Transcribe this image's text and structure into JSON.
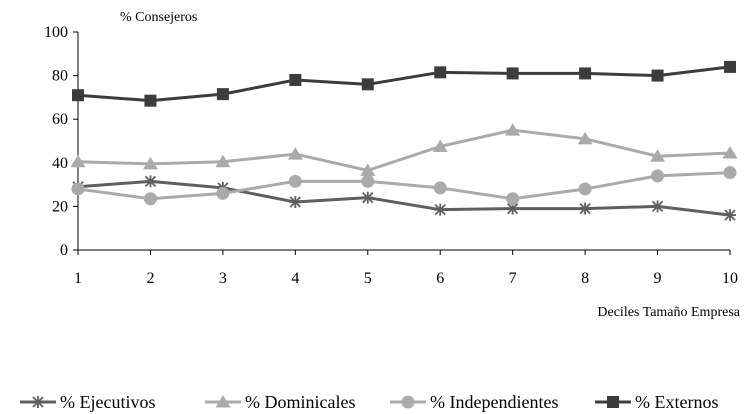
{
  "chart_data": {
    "type": "line",
    "title": "",
    "ylabel": "% Consejeros",
    "xlabel": "Deciles Tamaño Empresa",
    "x": [
      1,
      2,
      3,
      4,
      5,
      6,
      7,
      8,
      9,
      10
    ],
    "ylim": [
      0,
      100
    ],
    "yticks": [
      0,
      20,
      40,
      60,
      80,
      100
    ],
    "legend_position": "bottom",
    "grid": false,
    "series": [
      {
        "name": "% Ejecutivos",
        "marker": "star",
        "color": "#5f5f5f",
        "values": [
          29,
          31.5,
          28.5,
          22,
          24,
          18.5,
          19,
          19,
          20,
          16
        ]
      },
      {
        "name": "% Dominicales",
        "marker": "triangle",
        "color": "#aaaaaa",
        "values": [
          40.5,
          39.5,
          40.5,
          44,
          36.5,
          47.5,
          55,
          51,
          43,
          44.5
        ]
      },
      {
        "name": "% Independientes",
        "marker": "circle",
        "color": "#aaaaaa",
        "values": [
          28,
          23.5,
          26,
          31.5,
          31.5,
          28.5,
          23.5,
          28,
          34,
          35.5
        ]
      },
      {
        "name": "% Externos",
        "marker": "square",
        "color": "#3c3c3c",
        "values": [
          71,
          68.5,
          71.5,
          78,
          76,
          81.5,
          81,
          81,
          80,
          84
        ]
      }
    ]
  }
}
